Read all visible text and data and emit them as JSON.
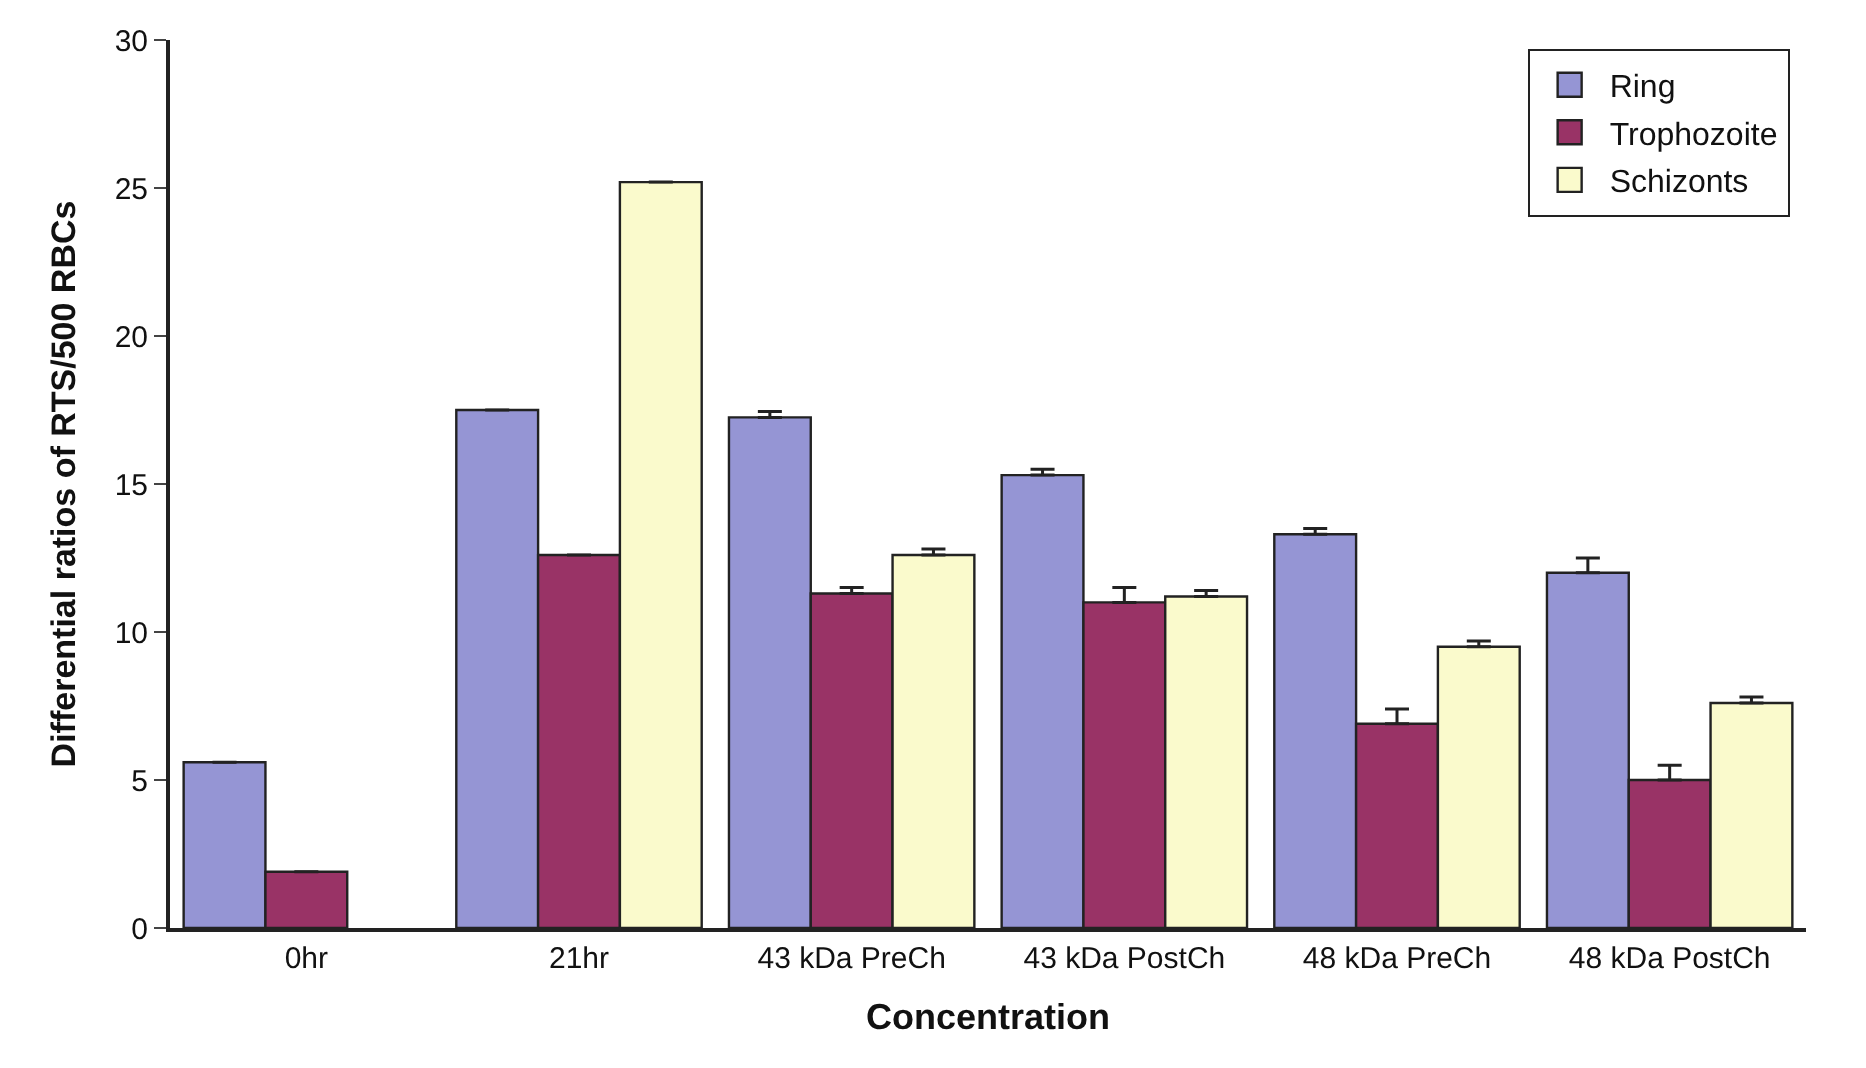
{
  "chart_data": {
    "type": "bar",
    "xlabel": "Concentration",
    "ylabel": "Differential ratios of RTS/500 RBCs",
    "categories": [
      "0hr",
      "21hr",
      "43 kDa PreCh",
      "43 kDa PostCh",
      "48 kDa PreCh",
      "48 kDa PostCh"
    ],
    "series": [
      {
        "name": "Ring",
        "color": "#9595d4",
        "values": [
          5.6,
          17.5,
          17.25,
          15.3,
          13.3,
          12.0
        ],
        "errors": [
          null,
          null,
          [
            17.25,
            17.45
          ],
          [
            15.3,
            15.5
          ],
          [
            13.3,
            13.5
          ],
          [
            12.0,
            12.5
          ]
        ]
      },
      {
        "name": "Trophozoite",
        "color": "#993366",
        "values": [
          1.9,
          12.6,
          11.3,
          11.0,
          6.9,
          5.0
        ],
        "errors": [
          null,
          null,
          [
            11.3,
            11.5
          ],
          [
            11.0,
            11.5
          ],
          [
            6.9,
            7.4
          ],
          [
            5.0,
            5.5
          ]
        ]
      },
      {
        "name": "Schizonts",
        "color": "#fafacc",
        "values": [
          null,
          25.2,
          12.6,
          11.2,
          9.5,
          7.6
        ],
        "errors": [
          null,
          null,
          [
            12.6,
            12.8
          ],
          [
            11.2,
            11.4
          ],
          [
            9.5,
            9.7
          ],
          [
            7.6,
            7.8
          ]
        ]
      }
    ],
    "ylim": [
      0,
      30
    ],
    "yticks": [
      0,
      5,
      10,
      15,
      20,
      25,
      30
    ],
    "legend": "top right"
  }
}
